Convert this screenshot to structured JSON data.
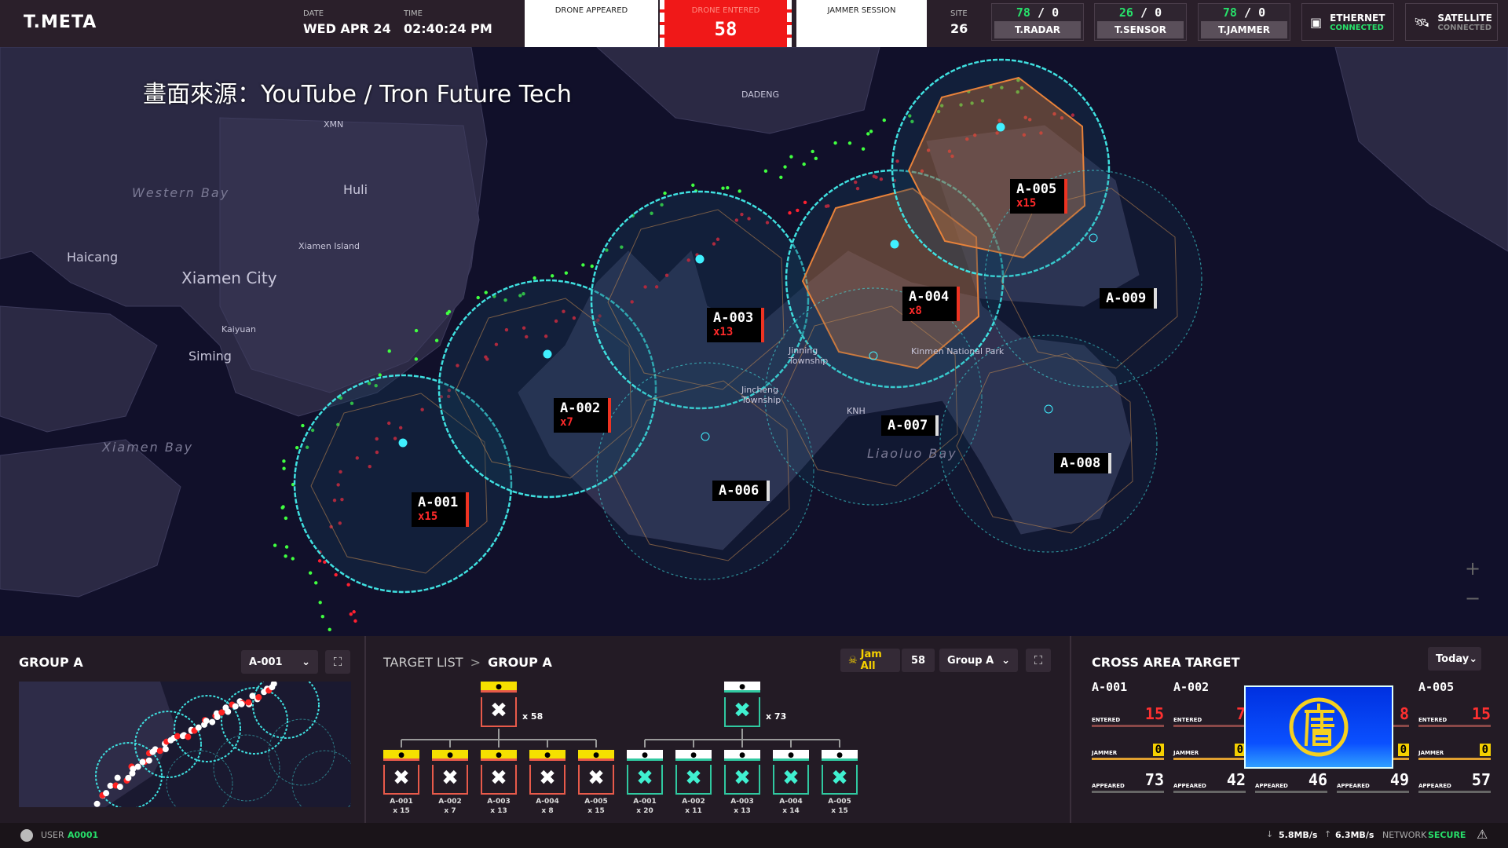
{
  "header": {
    "brand": "T.META",
    "date_label": "DATE",
    "date": "WED APR 24",
    "time_label": "TIME",
    "time": "02:40:24 PM",
    "stats": [
      {
        "label": "DRONE APPEARED",
        "value": ""
      },
      {
        "label": "DRONE ENTERED",
        "value": "58"
      },
      {
        "label": "JAMMER SESSION",
        "value": ""
      }
    ],
    "site_label": "SITE",
    "site": "26",
    "counters": [
      {
        "active": "78",
        "sep": "/",
        "inactive": "0",
        "label": "T.RADAR"
      },
      {
        "active": "26",
        "sep": "/",
        "inactive": "0",
        "label": "T.SENSOR"
      },
      {
        "active": "78",
        "sep": "/",
        "inactive": "0",
        "label": "T.JAMMER"
      }
    ],
    "connections": [
      {
        "name": "ETHERNET",
        "status": "CONNECTED",
        "status_color": "#27e06a",
        "icon": "ethernet-icon"
      },
      {
        "name": "SATELLITE",
        "status": "CONNECTED",
        "status_color": "#888888",
        "icon": "satellite-icon"
      }
    ]
  },
  "map": {
    "watermark": "畫面來源：YouTube / Tron Future Tech",
    "places": [
      {
        "name": "DADENG",
        "style": "small"
      },
      {
        "name": "XMN",
        "style": "small"
      },
      {
        "name": "Western Bay",
        "style": "italic"
      },
      {
        "name": "Huli",
        "style": "normal"
      },
      {
        "name": "Xiamen Island",
        "style": "small"
      },
      {
        "name": "Haicang",
        "style": "normal"
      },
      {
        "name": "Xiamen City",
        "style": "large"
      },
      {
        "name": "Kaiyuan",
        "style": "small"
      },
      {
        "name": "Siming",
        "style": "normal"
      },
      {
        "name": "Xiamen Bay",
        "style": "italic"
      },
      {
        "name": "Jinning Township",
        "style": "small"
      },
      {
        "name": "Jincheng Township",
        "style": "small"
      },
      {
        "name": "Kinmen National Park",
        "style": "small"
      },
      {
        "name": "KNH",
        "style": "small"
      },
      {
        "name": "Liaoluo Bay",
        "style": "italic"
      }
    ],
    "zones": [
      {
        "id": "A-001",
        "count": "x15",
        "active": true,
        "alert": false
      },
      {
        "id": "A-002",
        "count": "x7",
        "active": true,
        "alert": false
      },
      {
        "id": "A-003",
        "count": "x13",
        "active": true,
        "alert": false
      },
      {
        "id": "A-004",
        "count": "x8",
        "active": true,
        "alert": true
      },
      {
        "id": "A-005",
        "count": "x15",
        "active": true,
        "alert": true
      },
      {
        "id": "A-006",
        "count": "",
        "active": false,
        "alert": false
      },
      {
        "id": "A-007",
        "count": "",
        "active": false,
        "alert": false
      },
      {
        "id": "A-008",
        "count": "",
        "active": false,
        "alert": false
      },
      {
        "id": "A-009",
        "count": "",
        "active": false,
        "alert": false
      }
    ],
    "zoom_in": "+",
    "zoom_out": "−",
    "colors": {
      "zone": "#3fe0e0",
      "alert": "#e8823a",
      "hostile": "#ff2030",
      "friendly": "#40ff40"
    }
  },
  "group_panel": {
    "title": "GROUP A",
    "select": "A-001"
  },
  "target_list": {
    "crumb_root": "TARGET LIST",
    "crumb_sep": ">",
    "crumb_current": "GROUP A",
    "jam_all": "Jam All",
    "count": "58",
    "group_select": "Group A",
    "trees": [
      {
        "kind": "entered",
        "total": "x 58",
        "color": "#e85a4a",
        "tag": "#f5e000",
        "children": [
          {
            "id": "A-001",
            "n": "x 15"
          },
          {
            "id": "A-002",
            "n": "x 7"
          },
          {
            "id": "A-003",
            "n": "x 13"
          },
          {
            "id": "A-004",
            "n": "x 8"
          },
          {
            "id": "A-005",
            "n": "x 15"
          }
        ]
      },
      {
        "kind": "appeared",
        "total": "x 73",
        "color": "#30c8a0",
        "tag": "#ffffff",
        "children": [
          {
            "id": "A-001",
            "n": "x 20"
          },
          {
            "id": "A-002",
            "n": "x 11"
          },
          {
            "id": "A-003",
            "n": "x 13"
          },
          {
            "id": "A-004",
            "n": "x 14"
          },
          {
            "id": "A-005",
            "n": "x 15"
          }
        ]
      }
    ]
  },
  "cross_area": {
    "title": "CROSS AREA TARGET",
    "period": "Today",
    "entered_label": "ENTERED",
    "jammer_label": "JAMMER",
    "appeared_label": "APPEARED",
    "columns": [
      {
        "id": "A-001",
        "entered": "15",
        "jammer": "0",
        "appeared": "73"
      },
      {
        "id": "A-002",
        "entered": "7",
        "jammer": "0",
        "appeared": "42"
      },
      {
        "id": "",
        "entered": "",
        "jammer": "",
        "appeared": "46"
      },
      {
        "id": "",
        "entered": "8",
        "jammer": "0",
        "appeared": "49"
      },
      {
        "id": "A-005",
        "entered": "15",
        "jammer": "0",
        "appeared": "57"
      }
    ],
    "logo_text": "唐"
  },
  "status": {
    "user_label": "USER",
    "user": "A0001",
    "down": "5.8MB/s",
    "up": "6.3MB/s",
    "network_label": "NETWORK",
    "network": "SECURE"
  }
}
